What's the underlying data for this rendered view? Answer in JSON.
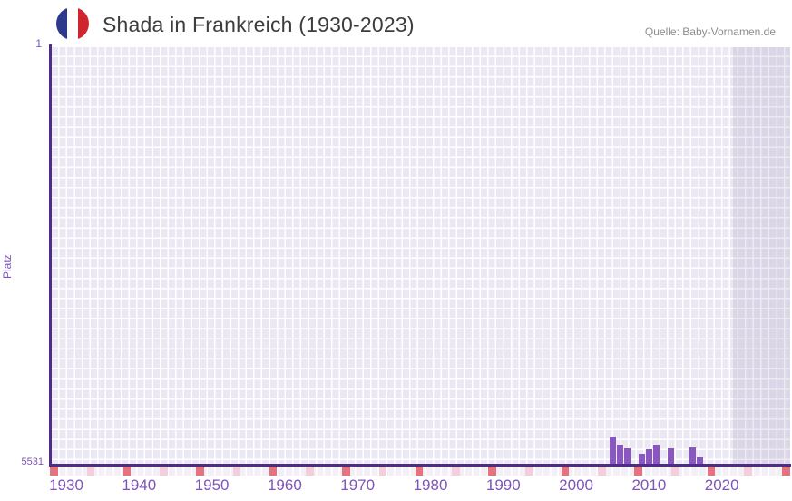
{
  "header": {
    "title": "Shada in Frankreich (1930-2023)",
    "source": "Quelle: Baby-Vornamen.de",
    "flag": "france-flag-icon"
  },
  "chart_data": {
    "type": "bar",
    "title": "Shada in Frankreich (1930-2023)",
    "xlabel": "",
    "ylabel": "Platz",
    "y_axis": {
      "top_label": "1",
      "bottom_label": "5531",
      "min": 1,
      "max": 5531,
      "inverted": true
    },
    "x_range": [
      1930,
      2023
    ],
    "x_ticks": [
      1930,
      1940,
      1950,
      1960,
      1970,
      1980,
      1990,
      2000,
      2010,
      2020
    ],
    "grid": true,
    "legend": "none",
    "recent_band_years": [
      2022,
      2023
    ],
    "series": [
      {
        "name": "Platz",
        "points": [
          {
            "year": 2005,
            "rank": 5165
          },
          {
            "year": 2006,
            "rank": 5280
          },
          {
            "year": 2007,
            "rank": 5330
          },
          {
            "year": 2009,
            "rank": 5400
          },
          {
            "year": 2010,
            "rank": 5335
          },
          {
            "year": 2011,
            "rank": 5278
          },
          {
            "year": 2013,
            "rank": 5325
          },
          {
            "year": 2016,
            "rank": 5315
          },
          {
            "year": 2017,
            "rank": 5450
          }
        ]
      }
    ]
  },
  "colors": {
    "bar": "#8a57c0",
    "axis": "#4f2c87",
    "axis_text": "#7e55b9",
    "grid_cell": "#ebe8f4",
    "recent_band_tint": "#6a6090",
    "not_ranked_dark": "#e5737f",
    "not_ranked_light": "#f3cfdc",
    "flag_blue": "#2c3a8e",
    "flag_red": "#d0252f",
    "title_text": "#3d3d3d",
    "source_text": "#8d8d8d"
  }
}
